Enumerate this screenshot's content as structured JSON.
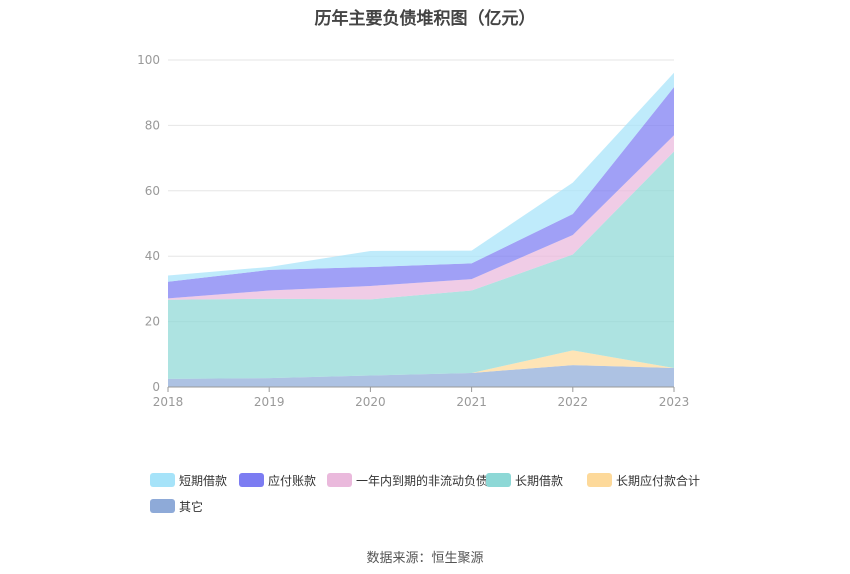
{
  "chart_data": {
    "type": "area",
    "stacked": true,
    "title": "历年主要负债堆积图（亿元）",
    "x": [
      "2018",
      "2019",
      "2020",
      "2021",
      "2022",
      "2023"
    ],
    "ylim": [
      0,
      100
    ],
    "yticks": [
      0,
      20,
      40,
      60,
      80,
      100
    ],
    "grid": true,
    "legend_position": "bottom",
    "series": [
      {
        "name": "其它",
        "color": "#8eaad8",
        "values": [
          2.5,
          2.7,
          3.5,
          4.3,
          6.7,
          5.8
        ]
      },
      {
        "name": "长期应付款合计",
        "color": "#fdd99a",
        "values": [
          0,
          0,
          0,
          0,
          4.5,
          0
        ]
      },
      {
        "name": "长期借款",
        "color": "#8dd8d6",
        "values": [
          24.2,
          24.3,
          23.3,
          25.2,
          29.3,
          66.2
        ]
      },
      {
        "name": "一年内到期的非流动负债",
        "color": "#eab9dc",
        "values": [
          0.4,
          2.5,
          4.1,
          3.5,
          6.0,
          5.0
        ]
      },
      {
        "name": "应付账款",
        "color": "#7c7cf2",
        "values": [
          5.1,
          6.3,
          5.8,
          4.8,
          6.4,
          14.7
        ]
      },
      {
        "name": "短期借款",
        "color": "#a6e3f9",
        "values": [
          1.9,
          0.9,
          4.9,
          3.9,
          9.6,
          4.4
        ]
      }
    ],
    "legend_order": [
      "短期借款",
      "应付账款",
      "一年内到期的非流动负债",
      "长期借款",
      "长期应付款合计",
      "其它"
    ]
  },
  "source": "数据来源：恒生聚源"
}
